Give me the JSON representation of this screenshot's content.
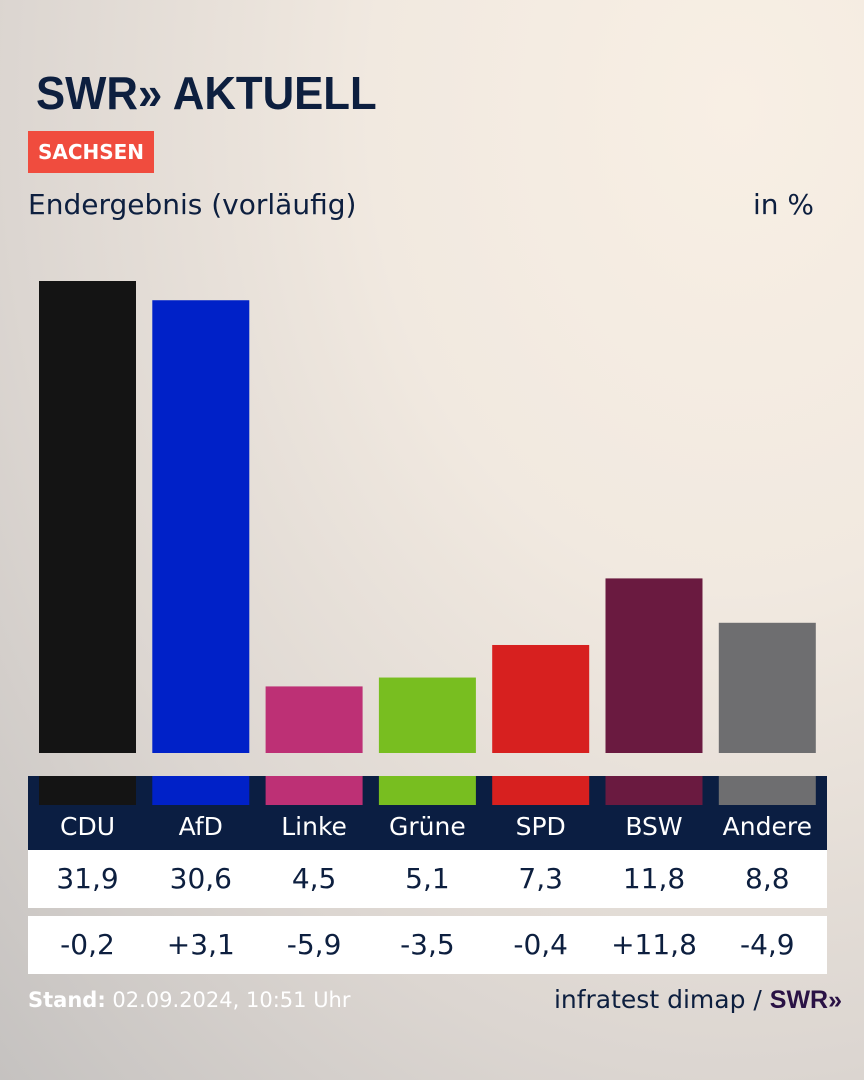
{
  "header": {
    "logo": "SWR» AKTUELL",
    "region": "SACHSEN",
    "subtitle": "Endergebnis (vorläufig)",
    "unit": "in %"
  },
  "footer": {
    "stand_label": "Stand:",
    "stand_value": "02.09.2024, 10:51 Uhr",
    "source": "infratest dimap /",
    "source_logo": "SWR»"
  },
  "chart_data": {
    "type": "bar",
    "categories": [
      "CDU",
      "AfD",
      "Linke",
      "Grüne",
      "SPD",
      "BSW",
      "Andere"
    ],
    "values": [
      31.9,
      30.6,
      4.5,
      5.1,
      7.3,
      11.8,
      8.8
    ],
    "value_labels": [
      "31,9",
      "30,6",
      "4,5",
      "5,1",
      "7,3",
      "11,8",
      "8,8"
    ],
    "change_labels": [
      "-0,2",
      "+3,1",
      "-5,9",
      "-3,5",
      "-0,4",
      "+11,8",
      "-4,9"
    ],
    "changes": [
      -0.2,
      3.1,
      -5.9,
      -3.5,
      -0.4,
      11.8,
      -4.9
    ],
    "colors": [
      "#141414",
      "#0021c8",
      "#bd3075",
      "#78be20",
      "#d7201f",
      "#6a1a40",
      "#6e6e70"
    ],
    "ylim": [
      0,
      31.9
    ],
    "grid": false
  }
}
